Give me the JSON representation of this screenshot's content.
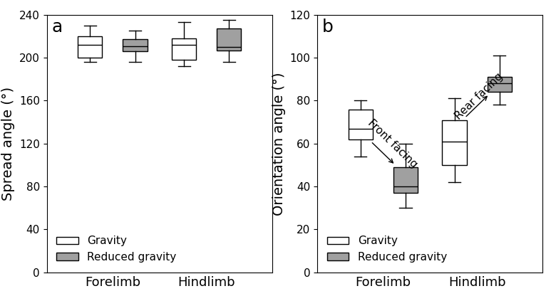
{
  "chart_data": [
    {
      "type": "box",
      "title": "a",
      "y_label": "Spread angle (°)",
      "categories": [
        "Forelimb",
        "Hindlimb"
      ],
      "ylim": [
        0,
        240
      ],
      "yticks": [
        0,
        40,
        80,
        120,
        160,
        200,
        240
      ],
      "legend": "lower left",
      "series": [
        {
          "name": "Gravity",
          "color": "#ffffff",
          "stats": [
            {
              "whislo": 196,
              "q1": 200,
              "med": 212,
              "q3": 220,
              "whishi": 230
            },
            {
              "whislo": 192,
              "q1": 198,
              "med": 212,
              "q3": 218,
              "whishi": 233
            }
          ]
        },
        {
          "name": "Reduced gravity",
          "color": "#a0a0a0",
          "stats": [
            {
              "whislo": 196,
              "q1": 206,
              "med": 211,
              "q3": 217,
              "whishi": 225
            },
            {
              "whislo": 196,
              "q1": 207,
              "med": 210,
              "q3": 227,
              "whishi": 235
            }
          ]
        }
      ]
    },
    {
      "type": "box",
      "title": "b",
      "y_label": "Orientation angle (°)",
      "categories": [
        "Forelimb",
        "Hindlimb"
      ],
      "ylim": [
        0,
        120
      ],
      "yticks": [
        0,
        20,
        40,
        60,
        80,
        100,
        120
      ],
      "legend": "lower left",
      "series": [
        {
          "name": "Gravity",
          "color": "#ffffff",
          "stats": [
            {
              "whislo": 54,
              "q1": 62,
              "med": 67,
              "q3": 76,
              "whishi": 80
            },
            {
              "whislo": 42,
              "q1": 50,
              "med": 61,
              "q3": 71,
              "whishi": 81
            }
          ]
        },
        {
          "name": "Reduced gravity",
          "color": "#a0a0a0",
          "stats": [
            {
              "whislo": 30,
              "q1": 37,
              "med": 40,
              "q3": 49,
              "whishi": 60
            },
            {
              "whislo": 78,
              "q1": 84,
              "med": 88,
              "q3": 91,
              "whishi": 101
            }
          ]
        }
      ],
      "annotations": [
        {
          "text": "Front facing",
          "category": "Forelimb"
        },
        {
          "text": "Rear facing",
          "category": "Hindlimb"
        }
      ]
    }
  ]
}
